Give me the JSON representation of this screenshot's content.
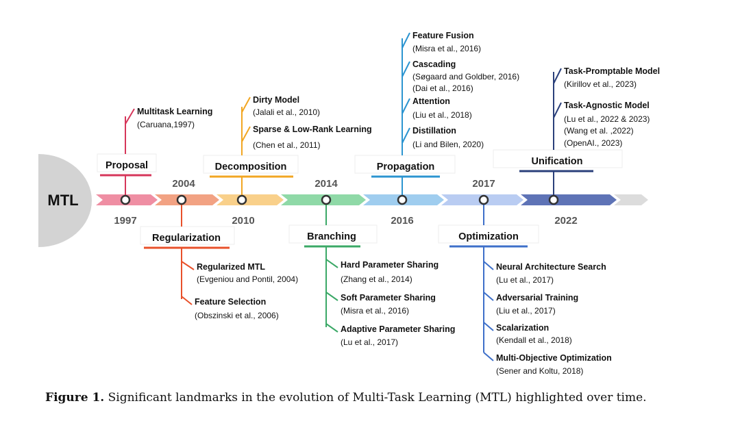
{
  "root_label": "MTL",
  "colors": {
    "proposal": "#d6365a",
    "regularization": "#e8502a",
    "decomposition": "#f2a622",
    "branching": "#3aa866",
    "propagation": "#2b94d0",
    "optimization": "#3d6fc9",
    "unification": "#2a3f7a"
  },
  "years": [
    "1997",
    "2004",
    "2010",
    "2014",
    "2016",
    "2017",
    "2022"
  ],
  "eras": [
    {
      "id": "proposal",
      "label": "Proposal",
      "year": "1997",
      "methods": [
        {
          "title": "Multitask Learning",
          "cites": [
            "(Caruana,1997)"
          ]
        }
      ]
    },
    {
      "id": "regularization",
      "label": "Regularization",
      "year": "2004",
      "methods": [
        {
          "title": "Regularized MTL",
          "cites": [
            "(Evgeniou and Pontil, 2004)"
          ]
        },
        {
          "title": "Feature Selection",
          "cites": [
            "(Obszinski et al., 2006)"
          ]
        }
      ]
    },
    {
      "id": "decomposition",
      "label": "Decomposition",
      "year": "2010",
      "methods": [
        {
          "title": "Dirty Model",
          "cites": [
            "(Jalali et al., 2010)"
          ]
        },
        {
          "title": "Sparse & Low-Rank Learning",
          "cites": [
            "(Chen et al., 2011)"
          ]
        }
      ]
    },
    {
      "id": "branching",
      "label": "Branching",
      "year": "2014",
      "methods": [
        {
          "title": "Hard Parameter Sharing",
          "cites": [
            "(Zhang et al., 2014)"
          ]
        },
        {
          "title": "Soft Parameter Sharing",
          "cites": [
            "(Misra et al., 2016)"
          ]
        },
        {
          "title": "Adaptive Parameter Sharing",
          "cites": [
            "(Lu et al., 2017)"
          ]
        }
      ]
    },
    {
      "id": "propagation",
      "label": "Propagation",
      "year": "2016",
      "methods": [
        {
          "title": "Feature Fusion",
          "cites": [
            "(Misra et al., 2016)"
          ]
        },
        {
          "title": "Cascading",
          "cites": [
            "(Søgaard and Goldber, 2016)",
            "(Dai et al., 2016)"
          ]
        },
        {
          "title": "Attention",
          "cites": [
            "(Liu et al., 2018)"
          ]
        },
        {
          "title": "Distillation",
          "cites": [
            "(Li and Bilen, 2020)"
          ]
        }
      ]
    },
    {
      "id": "optimization",
      "label": "Optimization",
      "year": "2017",
      "methods": [
        {
          "title": "Neural Architecture Search",
          "cites": [
            "(Lu et al., 2017)"
          ]
        },
        {
          "title": "Adversarial Training",
          "cites": [
            "(Liu et al., 2017)"
          ]
        },
        {
          "title": "Scalarization",
          "cites": [
            "(Kendall et al., 2018)"
          ]
        },
        {
          "title": "Multi-Objective Optimization",
          "cites": [
            "(Sener and Koltu, 2018)"
          ]
        }
      ]
    },
    {
      "id": "unification",
      "label": "Unification",
      "year": "2022",
      "methods": [
        {
          "title": "Task-Promptable Model",
          "cites": [
            "(Kirillov et al., 2023)"
          ]
        },
        {
          "title": "Task-Agnostic Model",
          "cites": [
            "(Lu et al., 2022 & 2023)",
            "(Wang et al. ,2022)",
            "(OpenAI., 2023)"
          ]
        }
      ]
    }
  ],
  "caption": {
    "label": "Figure 1.",
    "text": "Significant landmarks in the evolution of Multi-Task Learning (MTL) highlighted over time."
  }
}
